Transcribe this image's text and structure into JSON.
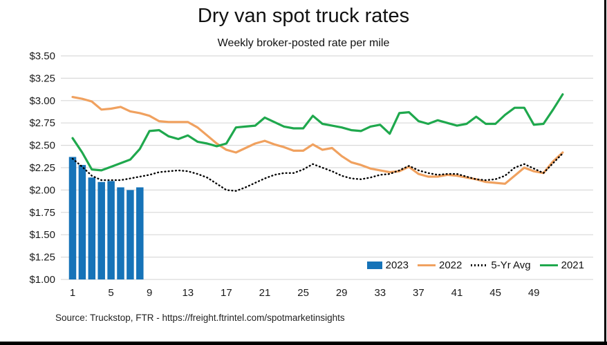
{
  "title": "Dry van spot truck rates",
  "subtitle": "Weekly broker-posted rate per mile",
  "source": "Source: Truckstop, FTR - https://freight.ftrintel.com/spotmarketinsights",
  "colors": {
    "bar_2023": "#1673B8",
    "line_2022": "#F0A15F",
    "line_5yr_avg": "#000000",
    "line_2021": "#1FA84D",
    "gridline": "#D9D9D9",
    "axis_text": "#1a1a1a"
  },
  "legend": [
    {
      "label": "2023",
      "swatch": "bar",
      "color": "#1673B8"
    },
    {
      "label": "2022",
      "swatch": "line",
      "color": "#F0A15F"
    },
    {
      "label": "5-Yr Avg",
      "swatch": "dotted",
      "color": "#000000"
    },
    {
      "label": "2021",
      "swatch": "line",
      "color": "#1FA84D"
    }
  ],
  "chart_data": {
    "type": "combo-bar-line",
    "title": "Dry van spot truck rates",
    "subtitle": "Weekly broker-posted rate per mile",
    "xlabel": "",
    "ylabel": "",
    "x": [
      1,
      2,
      3,
      4,
      5,
      6,
      7,
      8,
      9,
      10,
      11,
      12,
      13,
      14,
      15,
      16,
      17,
      18,
      19,
      20,
      21,
      22,
      23,
      24,
      25,
      26,
      27,
      28,
      29,
      30,
      31,
      32,
      33,
      34,
      35,
      36,
      37,
      38,
      39,
      40,
      41,
      42,
      43,
      44,
      45,
      46,
      47,
      48,
      49,
      50,
      51,
      52
    ],
    "xticks": [
      1,
      5,
      9,
      13,
      17,
      21,
      25,
      29,
      33,
      37,
      41,
      45,
      49
    ],
    "ylim": [
      1.0,
      3.5
    ],
    "ytick_step": 0.25,
    "yticks": [
      "$3.50",
      "$3.25",
      "$3.00",
      "$2.75",
      "$2.50",
      "$2.25",
      "$2.00",
      "$1.75",
      "$1.50",
      "$1.25",
      "$1.00"
    ],
    "grid": "horizontal",
    "legend_position": "inside-bottom-right",
    "series": [
      {
        "name": "2023",
        "type": "bar",
        "color": "#1673B8",
        "values": [
          2.37,
          2.28,
          2.14,
          2.09,
          2.1,
          2.03,
          2.0,
          2.03
        ]
      },
      {
        "name": "2022",
        "type": "line",
        "color": "#F0A15F",
        "values": [
          3.04,
          3.02,
          2.99,
          2.9,
          2.91,
          2.93,
          2.88,
          2.86,
          2.83,
          2.77,
          2.76,
          2.76,
          2.76,
          2.7,
          2.61,
          2.52,
          2.45,
          2.42,
          2.47,
          2.52,
          2.55,
          2.51,
          2.48,
          2.44,
          2.44,
          2.51,
          2.45,
          2.47,
          2.38,
          2.31,
          2.28,
          2.24,
          2.22,
          2.2,
          2.21,
          2.26,
          2.18,
          2.15,
          2.15,
          2.17,
          2.16,
          2.14,
          2.12,
          2.09,
          2.08,
          2.07,
          2.16,
          2.25,
          2.21,
          2.19,
          2.32,
          2.42
        ]
      },
      {
        "name": "5-Yr Avg",
        "type": "dotted-line",
        "color": "#000000",
        "values": [
          2.35,
          2.26,
          2.16,
          2.11,
          2.11,
          2.11,
          2.13,
          2.15,
          2.17,
          2.2,
          2.21,
          2.22,
          2.21,
          2.18,
          2.14,
          2.07,
          2.0,
          1.99,
          2.03,
          2.08,
          2.13,
          2.17,
          2.19,
          2.19,
          2.23,
          2.29,
          2.25,
          2.21,
          2.16,
          2.13,
          2.12,
          2.14,
          2.17,
          2.18,
          2.22,
          2.27,
          2.22,
          2.19,
          2.17,
          2.18,
          2.18,
          2.15,
          2.12,
          2.11,
          2.12,
          2.16,
          2.25,
          2.29,
          2.24,
          2.19,
          2.3,
          2.41
        ]
      },
      {
        "name": "2021",
        "type": "line",
        "color": "#1FA84D",
        "values": [
          2.58,
          2.42,
          2.23,
          2.22,
          2.26,
          2.3,
          2.34,
          2.46,
          2.66,
          2.67,
          2.6,
          2.57,
          2.61,
          2.54,
          2.52,
          2.49,
          2.52,
          2.7,
          2.71,
          2.72,
          2.81,
          2.76,
          2.71,
          2.69,
          2.69,
          2.83,
          2.74,
          2.72,
          2.7,
          2.67,
          2.66,
          2.71,
          2.73,
          2.63,
          2.86,
          2.87,
          2.77,
          2.74,
          2.78,
          2.75,
          2.72,
          2.74,
          2.82,
          2.74,
          2.74,
          2.84,
          2.92,
          2.92,
          2.73,
          2.74,
          2.9,
          3.07
        ]
      }
    ]
  }
}
